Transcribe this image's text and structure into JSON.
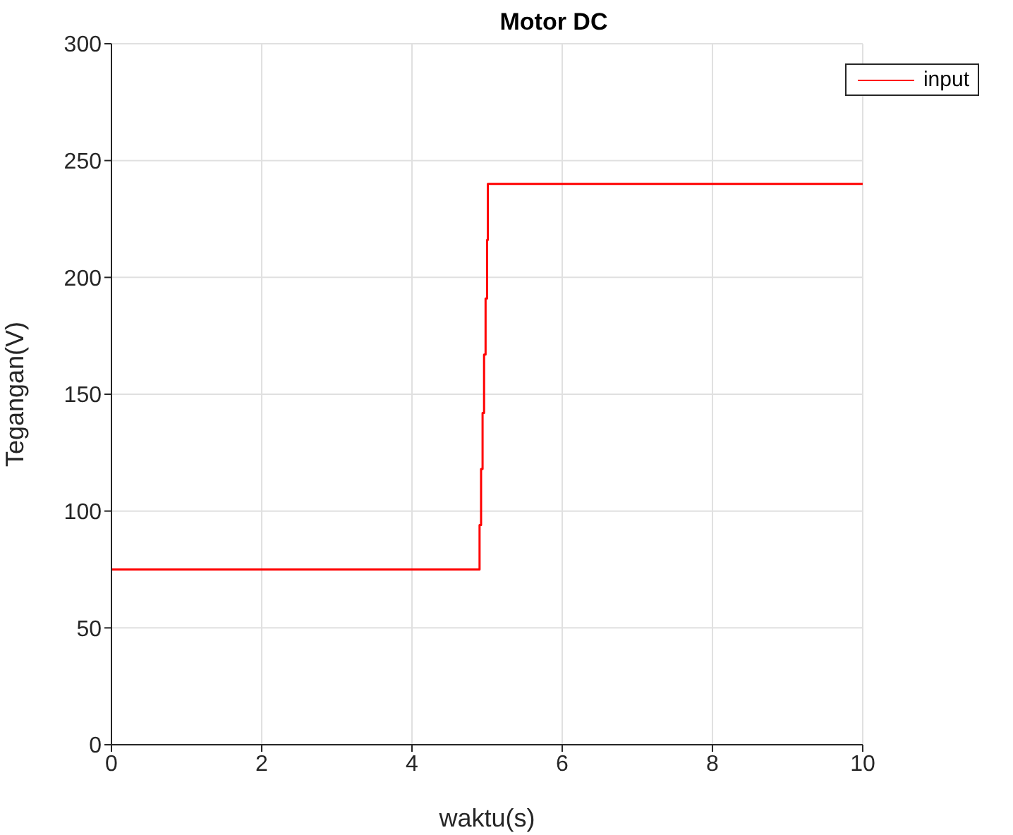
{
  "chart_data": {
    "type": "step",
    "title": "Motor DC",
    "xlabel": "waktu(s)",
    "ylabel": "Tegangan(V)",
    "x": [
      0,
      4.9,
      4.92,
      4.94,
      4.96,
      4.98,
      5.0,
      5.01,
      10
    ],
    "series": [
      {
        "name": "input",
        "color": "#ff0000",
        "values": [
          75,
          94,
          118,
          142,
          167,
          191,
          216,
          240,
          240
        ]
      }
    ],
    "xlim": [
      0,
      10
    ],
    "xticks": [
      0,
      2,
      4,
      6,
      8,
      10
    ],
    "ylim": [
      0,
      300
    ],
    "yticks": [
      0,
      50,
      100,
      150,
      200,
      250,
      300
    ],
    "grid": true,
    "legend": "top right"
  }
}
